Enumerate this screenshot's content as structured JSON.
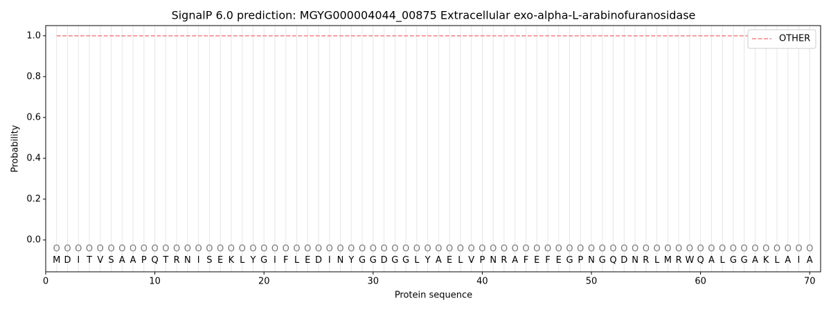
{
  "chart_data": {
    "type": "line",
    "title": "SignalP 6.0 prediction: MGYG000004044_00875 Extracellular exo-alpha-L-arabinofuranosidase",
    "x_label": "Protein sequence",
    "y_label": "Probability",
    "x": [
      1,
      2,
      3,
      4,
      5,
      6,
      7,
      8,
      9,
      10,
      11,
      12,
      13,
      14,
      15,
      16,
      17,
      18,
      19,
      20,
      21,
      22,
      23,
      24,
      25,
      26,
      27,
      28,
      29,
      30,
      31,
      32,
      33,
      34,
      35,
      36,
      37,
      38,
      39,
      40,
      41,
      42,
      43,
      44,
      45,
      46,
      47,
      48,
      49,
      50,
      51,
      52,
      53,
      54,
      55,
      56,
      57,
      58,
      59,
      60,
      61,
      62,
      63,
      64,
      65,
      66,
      67,
      68,
      69,
      70
    ],
    "series": [
      {
        "name": "OTHER",
        "color": "#f08080",
        "values": [
          1,
          1,
          1,
          1,
          1,
          1,
          1,
          1,
          1,
          1,
          1,
          1,
          1,
          1,
          1,
          1,
          1,
          1,
          1,
          1,
          1,
          1,
          1,
          1,
          1,
          1,
          1,
          1,
          1,
          1,
          1,
          1,
          1,
          1,
          1,
          1,
          1,
          1,
          1,
          1,
          1,
          1,
          1,
          1,
          1,
          1,
          1,
          1,
          1,
          1,
          1,
          1,
          1,
          1,
          1,
          1,
          1,
          1,
          1,
          1,
          1,
          1,
          1,
          1,
          1,
          1,
          1,
          1,
          1,
          1
        ]
      }
    ],
    "residues": [
      "M",
      "D",
      "I",
      "T",
      "V",
      "S",
      "A",
      "A",
      "P",
      "Q",
      "T",
      "R",
      "N",
      "I",
      "S",
      "E",
      "K",
      "L",
      "Y",
      "G",
      "I",
      "F",
      "L",
      "E",
      "D",
      "I",
      "N",
      "Y",
      "G",
      "G",
      "D",
      "G",
      "G",
      "L",
      "Y",
      "A",
      "E",
      "L",
      "V",
      "P",
      "N",
      "R",
      "A",
      "F",
      "E",
      "F",
      "E",
      "G",
      "P",
      "N",
      "G",
      "Q",
      "D",
      "N",
      "R",
      "L",
      "M",
      "R",
      "W",
      "Q",
      "A",
      "L",
      "G",
      "G",
      "A",
      "K",
      "L",
      "A",
      "I",
      "A"
    ],
    "predicted_labels": [
      "O",
      "O",
      "O",
      "O",
      "O",
      "O",
      "O",
      "O",
      "O",
      "O",
      "O",
      "O",
      "O",
      "O",
      "O",
      "O",
      "O",
      "O",
      "O",
      "O",
      "O",
      "O",
      "O",
      "O",
      "O",
      "O",
      "O",
      "O",
      "O",
      "O",
      "O",
      "O",
      "O",
      "O",
      "O",
      "O",
      "O",
      "O",
      "O",
      "O",
      "O",
      "O",
      "O",
      "O",
      "O",
      "O",
      "O",
      "O",
      "O",
      "O",
      "O",
      "O",
      "O",
      "O",
      "O",
      "O",
      "O",
      "O",
      "O",
      "O",
      "O",
      "O",
      "O",
      "O",
      "O",
      "O",
      "O",
      "O",
      "O",
      "O"
    ],
    "xlim": [
      0,
      71
    ],
    "ylim": [
      -0.156,
      1.05
    ],
    "xticks": [
      0,
      10,
      20,
      30,
      40,
      50,
      60,
      70
    ],
    "yticks": [
      {
        "value": 0,
        "label": "0.0"
      },
      {
        "value": 0.2,
        "label": "0.2"
      },
      {
        "value": 0.4,
        "label": "0.4"
      },
      {
        "value": 0.6,
        "label": "0.6"
      },
      {
        "value": 0.8,
        "label": "0.8"
      },
      {
        "value": 1,
        "label": "1.0"
      }
    ],
    "legend": "upper right"
  }
}
